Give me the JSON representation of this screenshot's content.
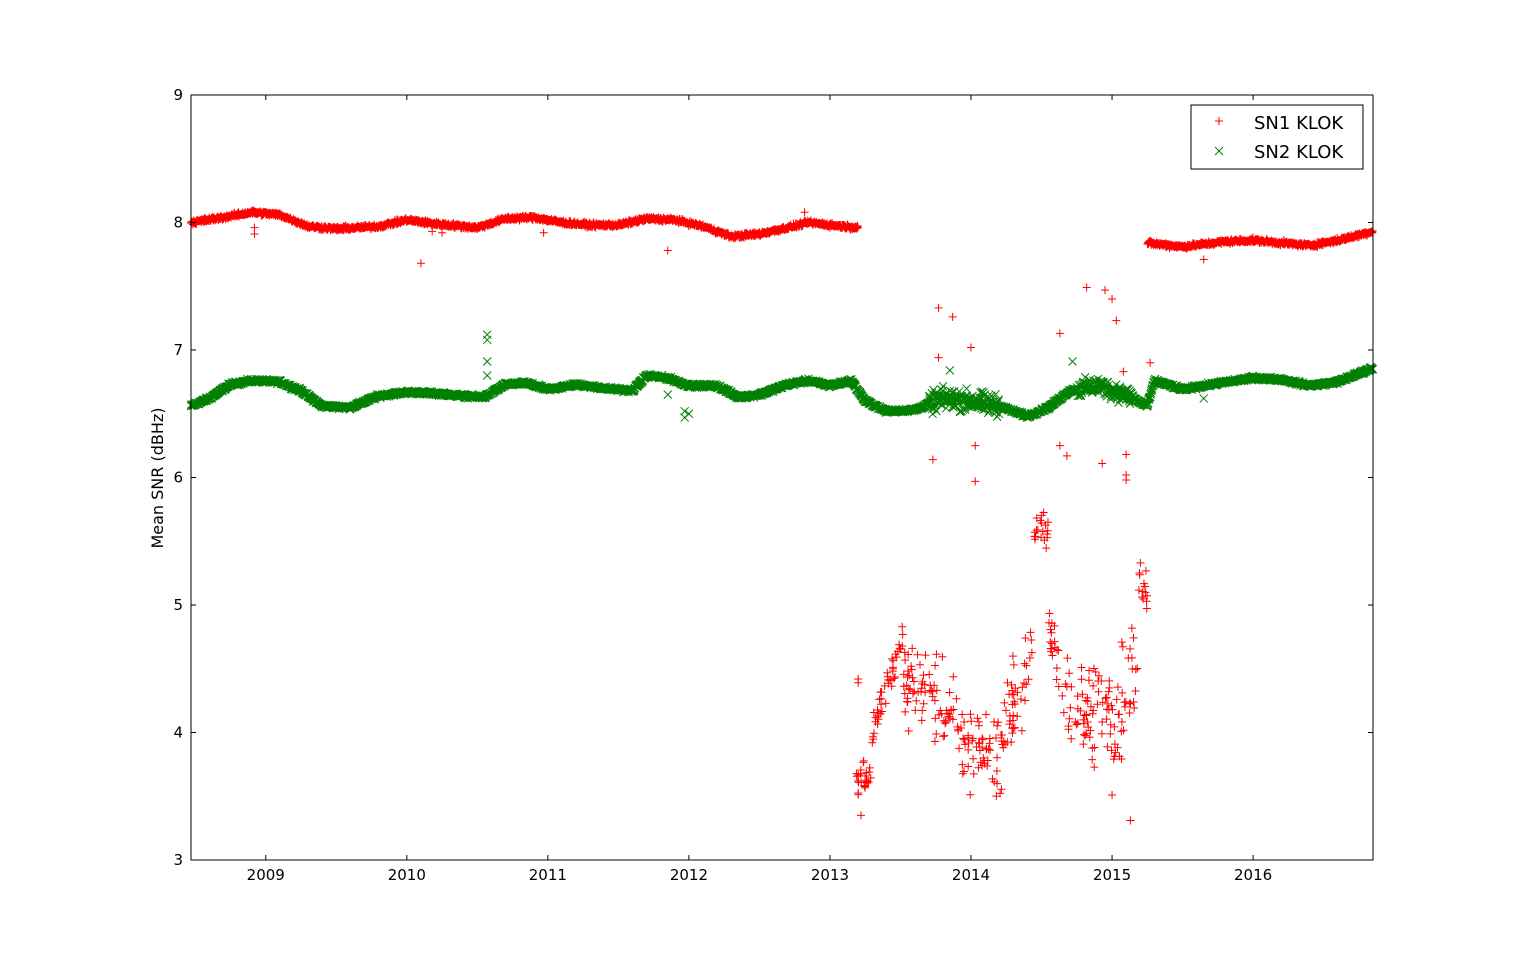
{
  "chart_data": {
    "type": "scatter",
    "title": "",
    "xlabel": "",
    "ylabel": "Mean SNR (dBHz)",
    "xlim": [
      2008.47,
      2016.85
    ],
    "ylim": [
      3,
      9
    ],
    "x_ticks": [
      2009,
      2010,
      2011,
      2012,
      2013,
      2014,
      2015,
      2016
    ],
    "x_tick_labels": [
      "2009",
      "2010",
      "2011",
      "2012",
      "2013",
      "2014",
      "2015",
      "2016"
    ],
    "y_ticks": [
      3,
      4,
      5,
      6,
      7,
      8,
      9
    ],
    "y_tick_labels": [
      "3",
      "4",
      "5",
      "6",
      "7",
      "8",
      "9"
    ],
    "grid": false,
    "legend_position": "top-right",
    "series": [
      {
        "name": "SN1 KLOK",
        "marker": "plus",
        "color": "#ff0000",
        "trend": [
          [
            2008.47,
            8.0
          ],
          [
            2008.7,
            8.04
          ],
          [
            2008.9,
            8.08
          ],
          [
            2009.1,
            8.06
          ],
          [
            2009.3,
            7.97
          ],
          [
            2009.5,
            7.95
          ],
          [
            2009.8,
            7.97
          ],
          [
            2010.0,
            8.02
          ],
          [
            2010.2,
            7.99
          ],
          [
            2010.5,
            7.96
          ],
          [
            2010.7,
            8.03
          ],
          [
            2010.9,
            8.04
          ],
          [
            2011.1,
            8.0
          ],
          [
            2011.3,
            7.98
          ],
          [
            2011.5,
            7.98
          ],
          [
            2011.7,
            8.03
          ],
          [
            2011.9,
            8.02
          ],
          [
            2012.1,
            7.97
          ],
          [
            2012.3,
            7.89
          ],
          [
            2012.5,
            7.91
          ],
          [
            2012.7,
            7.96
          ],
          [
            2012.85,
            8.0
          ],
          [
            2013.0,
            7.98
          ],
          [
            2013.2,
            7.96
          ],
          [
            2015.25,
            7.84
          ],
          [
            2015.5,
            7.81
          ],
          [
            2015.8,
            7.85
          ],
          [
            2016.0,
            7.86
          ],
          [
            2016.2,
            7.84
          ],
          [
            2016.4,
            7.82
          ],
          [
            2016.6,
            7.86
          ],
          [
            2016.85,
            7.93
          ]
        ],
        "gaps": [
          [
            2013.2,
            2015.25
          ]
        ],
        "outliers": [
          [
            2008.92,
            7.96
          ],
          [
            2008.92,
            7.91
          ],
          [
            2010.1,
            7.68
          ],
          [
            2010.18,
            7.93
          ],
          [
            2010.25,
            7.92
          ],
          [
            2010.97,
            7.92
          ],
          [
            2011.85,
            7.78
          ],
          [
            2012.82,
            8.08
          ],
          [
            2015.65,
            7.71
          ],
          [
            2013.77,
            7.33
          ],
          [
            2013.87,
            7.26
          ],
          [
            2014.0,
            7.02
          ],
          [
            2014.63,
            7.13
          ],
          [
            2014.82,
            7.49
          ],
          [
            2014.95,
            7.47
          ],
          [
            2015.0,
            7.4
          ],
          [
            2015.03,
            7.23
          ],
          [
            2015.08,
            6.83
          ],
          [
            2015.27,
            6.9
          ],
          [
            2013.77,
            6.94
          ],
          [
            2013.73,
            6.14
          ],
          [
            2014.03,
            6.25
          ],
          [
            2014.03,
            5.97
          ],
          [
            2014.63,
            6.25
          ],
          [
            2014.68,
            6.17
          ],
          [
            2014.93,
            6.11
          ],
          [
            2015.1,
            6.18
          ],
          [
            2015.1,
            6.02
          ],
          [
            2015.1,
            5.98
          ],
          [
            2013.2,
            4.42
          ],
          [
            2013.2,
            4.39
          ],
          [
            2015.13,
            3.31
          ],
          [
            2015.0,
            3.51
          ],
          [
            2013.22,
            3.35
          ]
        ],
        "degraded_segments": [
          {
            "x": [
              2013.18,
              2013.3
            ],
            "y_center": [
              3.6,
              3.7
            ],
            "spread": 0.25
          },
          {
            "x": [
              2013.3,
              2013.52
            ],
            "y_center": [
              4.0,
              4.75
            ],
            "spread": 0.25
          },
          {
            "x": [
              2013.52,
              2013.9
            ],
            "y_center": [
              4.35,
              4.2
            ],
            "spread": 0.45
          },
          {
            "x": [
              2013.9,
              2014.22
            ],
            "y_center": [
              3.95,
              3.8
            ],
            "spread": 0.55
          },
          {
            "x": [
              2014.22,
              2014.45
            ],
            "y_center": [
              4.1,
              4.6
            ],
            "spread": 0.45
          },
          {
            "x": [
              2014.45,
              2014.55
            ],
            "y_center": [
              5.55,
              5.6
            ],
            "spread": 0.2
          },
          {
            "x": [
              2014.55,
              2014.65
            ],
            "y_center": [
              4.9,
              4.35
            ],
            "spread": 0.35
          },
          {
            "x": [
              2014.65,
              2015.05
            ],
            "y_center": [
              4.3,
              4.1
            ],
            "spread": 0.6
          },
          {
            "x": [
              2015.05,
              2015.18
            ],
            "y_center": [
              4.2,
              4.6
            ],
            "spread": 0.65
          },
          {
            "x": [
              2015.18,
              2015.25
            ],
            "y_center": [
              5.15,
              5.1
            ],
            "spread": 0.3
          }
        ]
      },
      {
        "name": "SN2 KLOK",
        "marker": "x",
        "color": "#008000",
        "trend": [
          [
            2008.47,
            6.56
          ],
          [
            2008.6,
            6.62
          ],
          [
            2008.75,
            6.73
          ],
          [
            2008.9,
            6.76
          ],
          [
            2009.1,
            6.75
          ],
          [
            2009.25,
            6.68
          ],
          [
            2009.4,
            6.56
          ],
          [
            2009.6,
            6.55
          ],
          [
            2009.8,
            6.64
          ],
          [
            2010.0,
            6.67
          ],
          [
            2010.2,
            6.66
          ],
          [
            2010.4,
            6.64
          ],
          [
            2010.55,
            6.63
          ],
          [
            2010.7,
            6.73
          ],
          [
            2010.85,
            6.74
          ],
          [
            2011.0,
            6.69
          ],
          [
            2011.2,
            6.73
          ],
          [
            2011.4,
            6.7
          ],
          [
            2011.6,
            6.68
          ],
          [
            2011.7,
            6.8
          ],
          [
            2011.85,
            6.78
          ],
          [
            2012.0,
            6.72
          ],
          [
            2012.2,
            6.72
          ],
          [
            2012.35,
            6.63
          ],
          [
            2012.5,
            6.65
          ],
          [
            2012.7,
            6.73
          ],
          [
            2012.85,
            6.76
          ],
          [
            2013.0,
            6.72
          ],
          [
            2013.15,
            6.76
          ],
          [
            2013.25,
            6.6
          ],
          [
            2013.4,
            6.52
          ],
          [
            2013.6,
            6.53
          ],
          [
            2013.8,
            6.62
          ],
          [
            2014.0,
            6.6
          ],
          [
            2014.2,
            6.56
          ],
          [
            2014.4,
            6.48
          ],
          [
            2014.55,
            6.55
          ],
          [
            2014.7,
            6.68
          ],
          [
            2014.9,
            6.72
          ],
          [
            2015.1,
            6.65
          ],
          [
            2015.25,
            6.56
          ],
          [
            2015.3,
            6.76
          ],
          [
            2015.5,
            6.69
          ],
          [
            2015.7,
            6.73
          ],
          [
            2016.0,
            6.78
          ],
          [
            2016.2,
            6.77
          ],
          [
            2016.4,
            6.72
          ],
          [
            2016.6,
            6.75
          ],
          [
            2016.85,
            6.86
          ]
        ],
        "outliers": [
          [
            2010.57,
            7.12
          ],
          [
            2010.57,
            7.08
          ],
          [
            2010.57,
            6.91
          ],
          [
            2010.57,
            6.8
          ],
          [
            2011.97,
            6.52
          ],
          [
            2011.97,
            6.47
          ],
          [
            2012.0,
            6.5
          ],
          [
            2011.85,
            6.65
          ],
          [
            2014.72,
            6.91
          ],
          [
            2015.65,
            6.62
          ],
          [
            2013.85,
            6.84
          ]
        ],
        "noisy_segments": [
          {
            "x": [
              2013.7,
              2014.2
            ],
            "spread": 0.12
          },
          {
            "x": [
              2014.75,
              2015.15
            ],
            "spread": 0.1
          }
        ]
      }
    ]
  }
}
